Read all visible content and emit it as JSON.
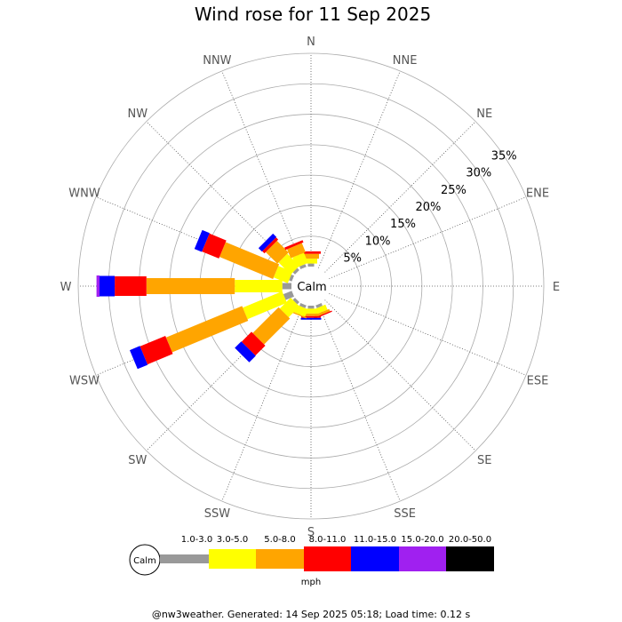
{
  "chart_data": {
    "type": "wind-rose",
    "title": "Wind rose for 11 Sep 2025",
    "directions": [
      "N",
      "NNE",
      "NE",
      "ENE",
      "E",
      "ESE",
      "SE",
      "SSE",
      "S",
      "SSW",
      "SW",
      "WSW",
      "W",
      "WNW",
      "NW",
      "NNW"
    ],
    "rings": [
      "5%",
      "10%",
      "15%",
      "20%",
      "25%",
      "30%",
      "35%"
    ],
    "ring_values": [
      5,
      10,
      15,
      20,
      25,
      30,
      35
    ],
    "calm_label": "Calm",
    "bins": [
      {
        "label": "1.0-3.0",
        "color": "#999999"
      },
      {
        "label": "3.0-5.0",
        "color": "#ffff00"
      },
      {
        "label": "5.0-8.0",
        "color": "#ffa500"
      },
      {
        "label": "8.0-11.0",
        "color": "#ff0000"
      },
      {
        "label": "11.0-15.0",
        "color": "#0000ff"
      },
      {
        "label": "15.0-20.0",
        "color": "#a020f0"
      },
      {
        "label": "20.0-50.0",
        "color": "#000000"
      }
    ],
    "unit": "mph",
    "series_cumulative_percent": {
      "N": [
        0.5,
        1.3,
        2.1,
        2.5,
        0,
        0,
        0
      ],
      "NNE": [
        0,
        0,
        0,
        0,
        0,
        0,
        0
      ],
      "NE": [
        0,
        0,
        0,
        0,
        0,
        0,
        0
      ],
      "ENE": [
        0,
        0,
        0,
        0,
        0,
        0,
        0
      ],
      "E": [
        0,
        0,
        0,
        0,
        0,
        0,
        0
      ],
      "ESE": [
        0,
        0,
        0,
        0,
        0,
        0,
        0
      ],
      "SE": [
        0,
        0,
        0,
        0,
        0,
        0,
        0
      ],
      "SSE": [
        0.5,
        1.4,
        1.8,
        2.0,
        0,
        0,
        0
      ],
      "S": [
        0.5,
        1.3,
        1.7,
        2.0,
        2.3,
        0,
        0
      ],
      "SSW": [
        0.5,
        1.8,
        2.0,
        0,
        0,
        0,
        0
      ],
      "SW": [
        0.5,
        3.0,
        9.0,
        11.3,
        12.8,
        0,
        0
      ],
      "WSW": [
        1.5,
        8.5,
        22.0,
        26.5,
        28.3,
        0,
        0
      ],
      "W": [
        1.5,
        9.3,
        23.8,
        29.0,
        31.5,
        32.0,
        0
      ],
      "WNW": [
        0.5,
        3.0,
        12.5,
        15.5,
        16.8,
        0,
        0
      ],
      "NW": [
        0.5,
        3.3,
        6.0,
        6.5,
        7.3,
        0,
        0
      ],
      "NNW": [
        0.5,
        2.3,
        3.9,
        4.3,
        0,
        0,
        0
      ]
    },
    "footer": "@nw3weather. Generated: 14 Sep 2025 05:18; Load time: 0.12 s"
  }
}
